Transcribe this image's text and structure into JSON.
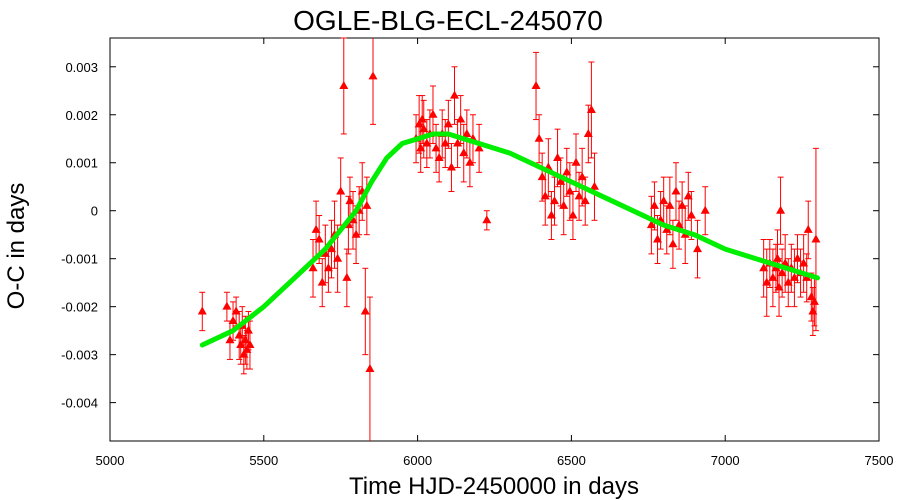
{
  "chart_data": {
    "type": "scatter",
    "title": "OGLE-BLG-ECL-245070",
    "xlabel": "Time HJD-2450000 in days",
    "ylabel": "O-C in days",
    "xlim": [
      5000,
      7500
    ],
    "ylim": [
      -0.0048,
      0.0036
    ],
    "xticks": [
      5000,
      5500,
      6000,
      6500,
      7000,
      7500
    ],
    "yticks": [
      -0.004,
      -0.003,
      -0.002,
      -0.001,
      0,
      0.001,
      0.002,
      0.003
    ],
    "ytick_labels": [
      "-0.004",
      "-0.003",
      "-0.002",
      "-0.001",
      "0",
      "0.001",
      "0.002",
      "0.003"
    ],
    "grid": false,
    "colors": {
      "points": "#ff0000",
      "fit": "#00ee00",
      "axes": "#000000"
    },
    "series": [
      {
        "type": "scatter_with_errorbars",
        "points": [
          [
            5300,
            -0.0021,
            0.0004
          ],
          [
            5380,
            -0.002,
            0.0003
          ],
          [
            5390,
            -0.0027,
            0.0004
          ],
          [
            5400,
            -0.0023,
            0.0004
          ],
          [
            5410,
            -0.0021,
            0.0003
          ],
          [
            5420,
            -0.0026,
            0.0005
          ],
          [
            5425,
            -0.0028,
            0.0004
          ],
          [
            5430,
            -0.0024,
            0.0004
          ],
          [
            5435,
            -0.003,
            0.0004
          ],
          [
            5440,
            -0.0027,
            0.0005
          ],
          [
            5445,
            -0.0029,
            0.0004
          ],
          [
            5450,
            -0.0025,
            0.0004
          ],
          [
            5455,
            -0.0028,
            0.0005
          ],
          [
            5660,
            -0.0012,
            0.0006
          ],
          [
            5670,
            -0.0004,
            0.0006
          ],
          [
            5680,
            -0.0006,
            0.0005
          ],
          [
            5690,
            -0.0015,
            0.0005
          ],
          [
            5700,
            -0.0009,
            0.0006
          ],
          [
            5710,
            -0.0012,
            0.0005
          ],
          [
            5720,
            -0.0008,
            0.0006
          ],
          [
            5730,
            -0.0005,
            0.0007
          ],
          [
            5740,
            -0.001,
            0.0007
          ],
          [
            5750,
            0.0004,
            0.0007
          ],
          [
            5760,
            0.0026,
            0.001
          ],
          [
            5770,
            -0.0014,
            0.0006
          ],
          [
            5775,
            -0.0003,
            0.0006
          ],
          [
            5780,
            0.0002,
            0.0005
          ],
          [
            5790,
            -0.0002,
            0.0006
          ],
          [
            5800,
            -0.0005,
            0.0006
          ],
          [
            5810,
            0.0,
            0.0005
          ],
          [
            5820,
            0.0004,
            0.0006
          ],
          [
            5830,
            -0.0021,
            0.0009
          ],
          [
            5835,
            0.0001,
            0.0006
          ],
          [
            5845,
            -0.0033,
            0.0015
          ],
          [
            5855,
            0.0028,
            0.001
          ],
          [
            5995,
            0.0015,
            0.0005
          ],
          [
            6005,
            0.0018,
            0.0006
          ],
          [
            6010,
            0.0013,
            0.0005
          ],
          [
            6015,
            0.0019,
            0.0005
          ],
          [
            6020,
            0.0017,
            0.0006
          ],
          [
            6030,
            0.0014,
            0.0005
          ],
          [
            6040,
            0.0016,
            0.0005
          ],
          [
            6050,
            0.002,
            0.0006
          ],
          [
            6060,
            0.0013,
            0.0005
          ],
          [
            6070,
            0.0011,
            0.0005
          ],
          [
            6080,
            0.0016,
            0.0005
          ],
          [
            6090,
            0.0014,
            0.0005
          ],
          [
            6100,
            0.0018,
            0.0005
          ],
          [
            6110,
            0.0009,
            0.0005
          ],
          [
            6120,
            0.0024,
            0.0006
          ],
          [
            6130,
            0.0014,
            0.0005
          ],
          [
            6140,
            0.0019,
            0.0005
          ],
          [
            6150,
            0.0012,
            0.0006
          ],
          [
            6160,
            0.0016,
            0.0005
          ],
          [
            6170,
            0.001,
            0.0005
          ],
          [
            6180,
            0.0015,
            0.0005
          ],
          [
            6200,
            0.0013,
            0.0005
          ],
          [
            6225,
            -0.0002,
            0.0002
          ],
          [
            6385,
            0.0026,
            0.0007
          ],
          [
            6395,
            0.0015,
            0.0005
          ],
          [
            6405,
            0.0007,
            0.0005
          ],
          [
            6415,
            0.0003,
            0.0006
          ],
          [
            6425,
            0.0009,
            0.0006
          ],
          [
            6435,
            -0.0001,
            0.0005
          ],
          [
            6445,
            0.0002,
            0.0005
          ],
          [
            6455,
            0.0011,
            0.0006
          ],
          [
            6465,
            0.0006,
            0.0005
          ],
          [
            6475,
            0.0001,
            0.0006
          ],
          [
            6485,
            0.0008,
            0.0005
          ],
          [
            6495,
            0.0004,
            0.0006
          ],
          [
            6505,
            -0.0001,
            0.0005
          ],
          [
            6515,
            0.001,
            0.0006
          ],
          [
            6525,
            0.0003,
            0.0005
          ],
          [
            6535,
            0.0007,
            0.0006
          ],
          [
            6545,
            0.0002,
            0.0005
          ],
          [
            6555,
            0.0016,
            0.0006
          ],
          [
            6565,
            0.0021,
            0.001
          ],
          [
            6575,
            0.0005,
            0.0007
          ],
          [
            6760,
            -0.0003,
            0.0006
          ],
          [
            6770,
            0.0001,
            0.0005
          ],
          [
            6780,
            -0.0006,
            0.0005
          ],
          [
            6790,
            -0.0002,
            0.0006
          ],
          [
            6800,
            0.0002,
            0.0005
          ],
          [
            6810,
            -0.0004,
            0.0005
          ],
          [
            6820,
            0.0001,
            0.0006
          ],
          [
            6830,
            -0.0007,
            0.0005
          ],
          [
            6840,
            0.0004,
            0.0006
          ],
          [
            6850,
            -0.0003,
            0.0005
          ],
          [
            6860,
            0.0001,
            0.0005
          ],
          [
            6870,
            -0.0005,
            0.0006
          ],
          [
            6880,
            0.0003,
            0.0005
          ],
          [
            6890,
            -0.0001,
            0.0005
          ],
          [
            6910,
            -0.0008,
            0.0006
          ],
          [
            6935,
            0.0,
            0.0005
          ],
          [
            7125,
            -0.0012,
            0.0006
          ],
          [
            7135,
            -0.0015,
            0.0007
          ],
          [
            7145,
            -0.0011,
            0.0005
          ],
          [
            7155,
            -0.0014,
            0.0006
          ],
          [
            7165,
            -0.0012,
            0.0005
          ],
          [
            7170,
            -0.001,
            0.0006
          ],
          [
            7175,
            -0.0016,
            0.0006
          ],
          [
            7180,
            0.0,
            0.0007
          ],
          [
            7185,
            -0.0013,
            0.0005
          ],
          [
            7195,
            -0.0011,
            0.0006
          ],
          [
            7205,
            -0.0015,
            0.0005
          ],
          [
            7215,
            -0.0012,
            0.0005
          ],
          [
            7225,
            -0.0014,
            0.0006
          ],
          [
            7235,
            -0.001,
            0.0005
          ],
          [
            7245,
            -0.0013,
            0.0005
          ],
          [
            7255,
            -0.0011,
            0.0006
          ],
          [
            7265,
            -0.0014,
            0.0005
          ],
          [
            7270,
            -0.0004,
            0.0006
          ],
          [
            7280,
            -0.0018,
            0.0005
          ],
          [
            7285,
            -0.0021,
            0.0005
          ],
          [
            7290,
            -0.0019,
            0.0005
          ],
          [
            7295,
            -0.0006,
            0.0019
          ]
        ]
      },
      {
        "type": "fit_line",
        "x": [
          5300,
          5400,
          5500,
          5600,
          5700,
          5800,
          5850,
          5900,
          5950,
          6000,
          6050,
          6100,
          6150,
          6200,
          6300,
          6400,
          6500,
          6600,
          6700,
          6800,
          6900,
          7000,
          7100,
          7200,
          7300
        ],
        "y": [
          -0.0028,
          -0.0025,
          -0.002,
          -0.0014,
          -0.0008,
          0.0,
          0.0006,
          0.0011,
          0.0014,
          0.0015,
          0.0016,
          0.0016,
          0.0015,
          0.0014,
          0.0012,
          0.0009,
          0.0006,
          0.0003,
          0.0,
          -0.0003,
          -0.0005,
          -0.0008,
          -0.001,
          -0.0012,
          -0.0014
        ]
      }
    ]
  }
}
